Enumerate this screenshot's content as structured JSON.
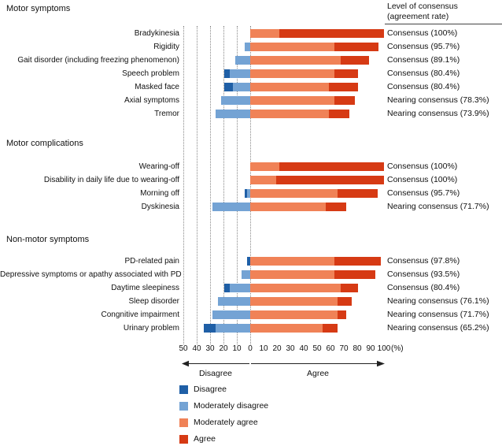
{
  "header": {
    "consensus_title_line1": "Level of consensus",
    "consensus_title_line2": "(agreement rate)"
  },
  "colors": {
    "disagree": "#1f5fa6",
    "moderately_disagree": "#74a3d4",
    "moderately_agree": "#f08257",
    "agree": "#d63a14"
  },
  "axis": {
    "tick_labels": [
      "50",
      "40",
      "30",
      "20",
      "10",
      "0",
      "10",
      "20",
      "30",
      "40",
      "50",
      "60",
      "70",
      "80",
      "90",
      "100"
    ],
    "unit_label": "(%)",
    "disagree_arrow_label": "Disagree",
    "agree_arrow_label": "Agree"
  },
  "legend": {
    "items": [
      {
        "label": "Disagree",
        "color_key": "disagree"
      },
      {
        "label": "Moderately disagree",
        "color_key": "moderately_disagree"
      },
      {
        "label": "Moderately agree",
        "color_key": "moderately_agree"
      },
      {
        "label": "Agree",
        "color_key": "agree"
      }
    ]
  },
  "chart_data": {
    "type": "diverging-stacked-bar",
    "x_axis": {
      "disagree_max": 50,
      "agree_max": 100,
      "tick_step": 10,
      "unit": "%"
    },
    "series_order": [
      "disagree",
      "moderately_disagree",
      "moderately_agree",
      "agree"
    ],
    "groups": [
      {
        "name": "Motor symptoms",
        "rows": [
          {
            "label": "Bradykinesia",
            "values": {
              "disagree": 0,
              "moderately_disagree": 0,
              "moderately_agree": 21.7,
              "agree": 78.3
            },
            "consensus": "Consensus (100%)"
          },
          {
            "label": "Rigidity",
            "values": {
              "disagree": 0,
              "moderately_disagree": 4.3,
              "moderately_agree": 63.0,
              "agree": 32.7
            },
            "consensus": "Consensus (95.7%)"
          },
          {
            "label": "Gait disorder (including freezing phenomenon)",
            "values": {
              "disagree": 0,
              "moderately_disagree": 10.9,
              "moderately_agree": 67.4,
              "agree": 21.7
            },
            "consensus": "Consensus (89.1%)"
          },
          {
            "label": "Speech problem",
            "values": {
              "disagree": 4.3,
              "moderately_disagree": 15.2,
              "moderately_agree": 63.0,
              "agree": 17.4
            },
            "consensus": "Consensus (80.4%)"
          },
          {
            "label": "Masked face",
            "values": {
              "disagree": 6.5,
              "moderately_disagree": 13.0,
              "moderately_agree": 58.7,
              "agree": 21.7
            },
            "consensus": "Consensus (80.4%)"
          },
          {
            "label": "Axial symptoms",
            "values": {
              "disagree": 0,
              "moderately_disagree": 21.7,
              "moderately_agree": 63.0,
              "agree": 15.2
            },
            "consensus": "Nearing consensus (78.3%)"
          },
          {
            "label": "Tremor",
            "values": {
              "disagree": 0,
              "moderately_disagree": 26.1,
              "moderately_agree": 58.7,
              "agree": 15.2
            },
            "consensus": "Nearing consensus (73.9%)"
          }
        ]
      },
      {
        "name": "Motor complications",
        "rows": [
          {
            "label": "Wearing-off",
            "values": {
              "disagree": 0,
              "moderately_disagree": 0,
              "moderately_agree": 21.7,
              "agree": 78.3
            },
            "consensus": "Consensus (100%)"
          },
          {
            "label": "Disability in daily life due to wearing-off",
            "values": {
              "disagree": 0,
              "moderately_disagree": 0,
              "moderately_agree": 19.6,
              "agree": 80.4
            },
            "consensus": "Consensus (100%)"
          },
          {
            "label": "Morning off",
            "values": {
              "disagree": 2.2,
              "moderately_disagree": 2.2,
              "moderately_agree": 65.2,
              "agree": 30.4
            },
            "consensus": "Consensus (95.7%)"
          },
          {
            "label": "Dyskinesia",
            "values": {
              "disagree": 0,
              "moderately_disagree": 28.3,
              "moderately_agree": 56.5,
              "agree": 15.2
            },
            "consensus": "Nearing consensus (71.7%)"
          }
        ]
      },
      {
        "name": "Non-motor symptoms",
        "rows": [
          {
            "label": "PD-related pain",
            "values": {
              "disagree": 2.2,
              "moderately_disagree": 0,
              "moderately_agree": 63.0,
              "agree": 34.8
            },
            "consensus": "Consensus (97.8%)"
          },
          {
            "label": "Depressive symptoms or apathy associated with PD",
            "values": {
              "disagree": 0,
              "moderately_disagree": 6.5,
              "moderately_agree": 63.0,
              "agree": 30.5
            },
            "consensus": "Consensus (93.5%)"
          },
          {
            "label": "Daytime sleepiness",
            "values": {
              "disagree": 4.3,
              "moderately_disagree": 15.2,
              "moderately_agree": 67.4,
              "agree": 13.0
            },
            "consensus": "Consensus (80.4%)"
          },
          {
            "label": "Sleep disorder",
            "values": {
              "disagree": 0,
              "moderately_disagree": 23.9,
              "moderately_agree": 65.2,
              "agree": 10.9
            },
            "consensus": "Nearing consensus (76.1%)"
          },
          {
            "label": "Congnitive impairment",
            "values": {
              "disagree": 0,
              "moderately_disagree": 28.3,
              "moderately_agree": 65.2,
              "agree": 6.5
            },
            "consensus": "Nearing consensus (71.7%)"
          },
          {
            "label": "Urinary problem",
            "values": {
              "disagree": 8.7,
              "moderately_disagree": 26.1,
              "moderately_agree": 54.3,
              "agree": 10.9
            },
            "consensus": "Nearing consensus (65.2%)"
          }
        ]
      }
    ]
  }
}
